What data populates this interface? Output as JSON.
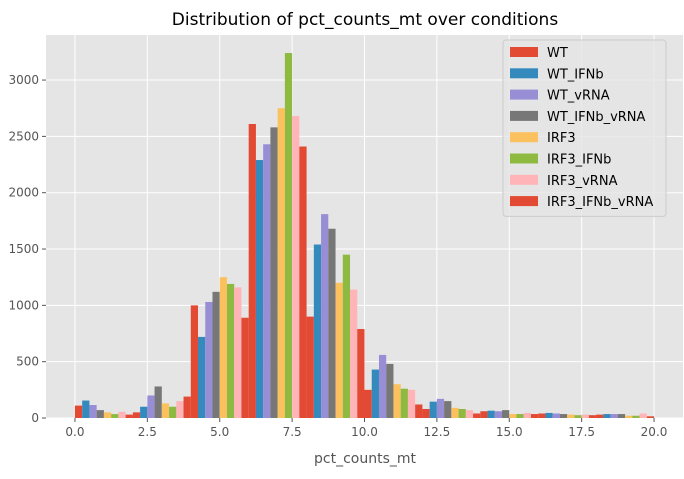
{
  "chart_data": {
    "type": "bar",
    "title": "Distribution of pct_counts_mt over conditions",
    "xlabel": "pct_counts_mt",
    "ylabel": "",
    "xlim": [
      -1.0,
      21.0
    ],
    "ylim": [
      0,
      3400
    ],
    "xticks": [
      0.0,
      2.5,
      5.0,
      7.5,
      10.0,
      12.5,
      15.0,
      17.5,
      20.0
    ],
    "xtick_labels": [
      "0.0",
      "2.5",
      "5.0",
      "7.5",
      "10.0",
      "12.5",
      "15.0",
      "17.5",
      "20.0"
    ],
    "yticks": [
      0,
      500,
      1000,
      1500,
      2000,
      2500,
      3000
    ],
    "ytick_labels": [
      "0",
      "500",
      "1000",
      "1500",
      "2000",
      "2500",
      "3000"
    ],
    "bins": [
      [
        0.0,
        2.0
      ],
      [
        2.0,
        4.0
      ],
      [
        4.0,
        6.0
      ],
      [
        6.0,
        8.0
      ],
      [
        8.0,
        10.0
      ],
      [
        10.0,
        12.0
      ],
      [
        12.0,
        14.0
      ],
      [
        14.0,
        16.0
      ],
      [
        16.0,
        18.0
      ],
      [
        18.0,
        20.0
      ]
    ],
    "grid": true,
    "legend_position": "top-right",
    "series": [
      {
        "name": "WT",
        "color": "#E24A33",
        "values": [
          110,
          50,
          1000,
          2610,
          900,
          250,
          80,
          60,
          40,
          30
        ]
      },
      {
        "name": "WT_IFNb",
        "color": "#348ABD",
        "values": [
          155,
          100,
          720,
          2290,
          1540,
          430,
          145,
          65,
          45,
          35
        ]
      },
      {
        "name": "WT_vRNA",
        "color": "#988ED5",
        "values": [
          115,
          200,
          1030,
          2430,
          1810,
          560,
          170,
          60,
          40,
          35
        ]
      },
      {
        "name": "WT_IFNb_vRNA",
        "color": "#777777",
        "values": [
          70,
          280,
          1120,
          2580,
          1680,
          480,
          150,
          70,
          35,
          35
        ]
      },
      {
        "name": "IRF3",
        "color": "#FBC15E",
        "values": [
          50,
          130,
          1250,
          2750,
          1200,
          300,
          90,
          35,
          30,
          20
        ]
      },
      {
        "name": "IRF3_IFNb",
        "color": "#8EBA42",
        "values": [
          35,
          100,
          1190,
          3240,
          1450,
          260,
          80,
          35,
          25,
          20
        ]
      },
      {
        "name": "IRF3_vRNA",
        "color": "#FFB5B8",
        "values": [
          55,
          150,
          1160,
          2680,
          1140,
          250,
          70,
          45,
          30,
          40
        ]
      },
      {
        "name": "IRF3_IFNb_vRNA",
        "color": "#E24A33",
        "values": [
          30,
          190,
          890,
          2410,
          790,
          120,
          40,
          35,
          25,
          15
        ]
      }
    ]
  }
}
